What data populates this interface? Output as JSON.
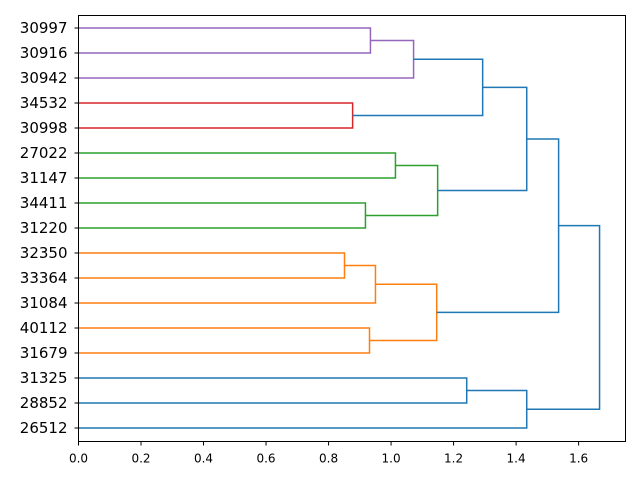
{
  "chart_data": {
    "type": "dendrogram",
    "orientation": "right",
    "title": "",
    "xlabel": "",
    "ylabel": "",
    "xlim": [
      0,
      1.75
    ],
    "xticks": [
      "0.0",
      "0.2",
      "0.4",
      "0.6",
      "0.8",
      "1.0",
      "1.2",
      "1.4",
      "1.6"
    ],
    "xtick_values": [
      0,
      0.2,
      0.4,
      0.6,
      0.8,
      1.0,
      1.2,
      1.4,
      1.6
    ],
    "leaves": [
      "30997",
      "30916",
      "30942",
      "34532",
      "30998",
      "27022",
      "31147",
      "34411",
      "31220",
      "32350",
      "33364",
      "31084",
      "40112",
      "31679",
      "31325",
      "28852",
      "26512"
    ],
    "colors": {
      "purple": "#9467bd",
      "red": "#d62728",
      "green": "#2ca02c",
      "orange": "#ff7f0e",
      "blue": "#1f77b4"
    },
    "merges": [
      {
        "a": "L0",
        "b": "L1",
        "height": 0.934,
        "color": "purple"
      },
      {
        "a": "M0",
        "b": "L2",
        "height": 1.072,
        "color": "purple"
      },
      {
        "a": "L3",
        "b": "L4",
        "height": 0.877,
        "color": "red"
      },
      {
        "a": "M1",
        "b": "M2",
        "height": 1.293,
        "color": "blue"
      },
      {
        "a": "L5",
        "b": "L6",
        "height": 1.014,
        "color": "green"
      },
      {
        "a": "L7",
        "b": "L8",
        "height": 0.918,
        "color": "green"
      },
      {
        "a": "M4",
        "b": "M5",
        "height": 1.149,
        "color": "green"
      },
      {
        "a": "M3",
        "b": "M6",
        "height": 1.434,
        "color": "blue"
      },
      {
        "a": "L9",
        "b": "L10",
        "height": 0.851,
        "color": "orange"
      },
      {
        "a": "M8",
        "b": "L11",
        "height": 0.95,
        "color": "orange"
      },
      {
        "a": "L12",
        "b": "L13",
        "height": 0.931,
        "color": "orange"
      },
      {
        "a": "M9",
        "b": "M10",
        "height": 1.146,
        "color": "orange"
      },
      {
        "a": "M7",
        "b": "M11",
        "height": 1.536,
        "color": "blue"
      },
      {
        "a": "L14",
        "b": "L15",
        "height": 1.242,
        "color": "blue"
      },
      {
        "a": "M13",
        "b": "L16",
        "height": 1.434,
        "color": "blue"
      },
      {
        "a": "M12",
        "b": "M14",
        "height": 1.667,
        "color": "blue"
      }
    ]
  }
}
